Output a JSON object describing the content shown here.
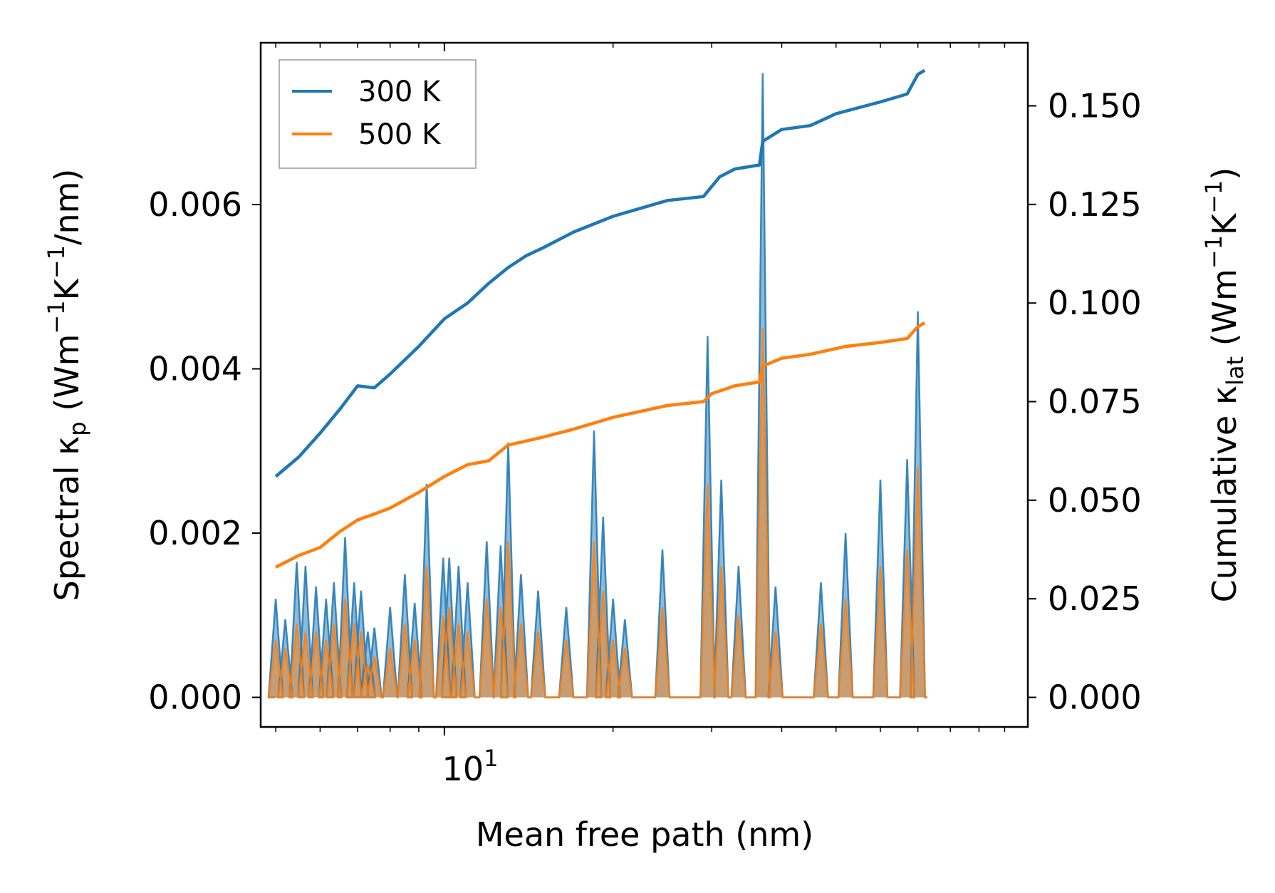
{
  "chart_data": {
    "type": "line",
    "x_scale": "log",
    "xlim": [
      4.7,
      110
    ],
    "xlabel": "Mean free path (nm)",
    "x_major_tick": {
      "value": 10,
      "label_base": "10",
      "label_exp": "1"
    },
    "left_axis": {
      "ylim": [
        -0.00036,
        0.00797
      ],
      "ticks": [
        0.0,
        0.002,
        0.004,
        0.006
      ],
      "tick_labels": [
        "0.000",
        "0.002",
        "0.004",
        "0.006"
      ],
      "label_parts": [
        "Spectral κ",
        "p",
        " (Wm",
        "−1",
        "K",
        "−1",
        "/nm)"
      ]
    },
    "right_axis": {
      "ylim": [
        -0.0075,
        0.166
      ],
      "ticks": [
        0.0,
        0.025,
        0.05,
        0.075,
        0.1,
        0.125,
        0.15
      ],
      "tick_labels": [
        "0.000",
        "0.025",
        "0.050",
        "0.075",
        "0.100",
        "0.125",
        "0.150"
      ],
      "label_parts": [
        "Cumulative κ",
        "lat",
        " (Wm",
        "−1",
        "K",
        "−1",
        ")"
      ]
    },
    "legend": {
      "position": "top-left",
      "entries": [
        {
          "label": "300 K",
          "color": "#1f77b4"
        },
        {
          "label": "500 K",
          "color": "#ff7f0e"
        }
      ]
    },
    "series": [
      {
        "name": "300 K",
        "color": "#1f77b4",
        "spectral_peaks": [
          [
            5.0,
            0.0012
          ],
          [
            5.2,
            0.00095
          ],
          [
            5.45,
            0.00165
          ],
          [
            5.65,
            0.0016
          ],
          [
            5.9,
            0.00135
          ],
          [
            6.15,
            0.0012
          ],
          [
            6.35,
            0.0014
          ],
          [
            6.65,
            0.00195
          ],
          [
            6.9,
            0.0014
          ],
          [
            7.1,
            0.0013
          ],
          [
            7.3,
            0.0008
          ],
          [
            7.5,
            0.00085
          ],
          [
            8.0,
            0.0011
          ],
          [
            8.5,
            0.0015
          ],
          [
            8.85,
            0.00115
          ],
          [
            9.3,
            0.0026
          ],
          [
            9.95,
            0.0017
          ],
          [
            10.2,
            0.0017
          ],
          [
            10.6,
            0.0016
          ],
          [
            11.0,
            0.0014
          ],
          [
            11.9,
            0.0019
          ],
          [
            12.6,
            0.00185
          ],
          [
            13.0,
            0.0031
          ],
          [
            13.7,
            0.0015
          ],
          [
            14.7,
            0.0013
          ],
          [
            16.5,
            0.0011
          ],
          [
            18.5,
            0.00325
          ],
          [
            19.2,
            0.0022
          ],
          [
            20.0,
            0.0012
          ],
          [
            21.0,
            0.00095
          ],
          [
            24.5,
            0.0018
          ],
          [
            29.5,
            0.0044
          ],
          [
            31.2,
            0.00265
          ],
          [
            33.5,
            0.0016
          ],
          [
            37.0,
            0.0076
          ],
          [
            39.0,
            0.00135
          ],
          [
            47.0,
            0.0014
          ],
          [
            52.0,
            0.002
          ],
          [
            60.0,
            0.00265
          ],
          [
            67.0,
            0.0029
          ],
          [
            70.0,
            0.0047
          ]
        ],
        "cumulative": [
          [
            5.0,
            0.056
          ],
          [
            5.5,
            0.061
          ],
          [
            6.0,
            0.067
          ],
          [
            6.5,
            0.073
          ],
          [
            7.0,
            0.079
          ],
          [
            7.5,
            0.0785
          ],
          [
            8.0,
            0.082
          ],
          [
            9.0,
            0.089
          ],
          [
            10.0,
            0.096
          ],
          [
            11.0,
            0.1
          ],
          [
            12.0,
            0.105
          ],
          [
            13.0,
            0.109
          ],
          [
            14.0,
            0.112
          ],
          [
            15.0,
            0.114
          ],
          [
            17.0,
            0.118
          ],
          [
            20.0,
            0.122
          ],
          [
            25.0,
            0.126
          ],
          [
            29.0,
            0.127
          ],
          [
            31.0,
            0.132
          ],
          [
            33.0,
            0.134
          ],
          [
            36.5,
            0.135
          ],
          [
            37.0,
            0.141
          ],
          [
            40.0,
            0.144
          ],
          [
            45.0,
            0.145
          ],
          [
            50.0,
            0.148
          ],
          [
            60.0,
            0.151
          ],
          [
            67.0,
            0.153
          ],
          [
            70.0,
            0.158
          ],
          [
            72.0,
            0.159
          ]
        ]
      },
      {
        "name": "500 K",
        "color": "#ff7f0e",
        "spectral_peaks": [
          [
            5.0,
            0.0007
          ],
          [
            5.2,
            0.0006
          ],
          [
            5.45,
            0.0009
          ],
          [
            5.65,
            0.0008
          ],
          [
            5.9,
            0.0008
          ],
          [
            6.15,
            0.0007
          ],
          [
            6.35,
            0.0009
          ],
          [
            6.65,
            0.0012
          ],
          [
            6.9,
            0.0009
          ],
          [
            7.1,
            0.0008
          ],
          [
            7.3,
            0.0004
          ],
          [
            7.5,
            0.0005
          ],
          [
            8.0,
            0.0006
          ],
          [
            8.5,
            0.0009
          ],
          [
            8.85,
            0.0007
          ],
          [
            9.3,
            0.0016
          ],
          [
            9.95,
            0.001
          ],
          [
            10.2,
            0.0011
          ],
          [
            10.6,
            0.0009
          ],
          [
            11.0,
            0.0008
          ],
          [
            11.9,
            0.0012
          ],
          [
            12.6,
            0.0011
          ],
          [
            13.0,
            0.0019
          ],
          [
            13.7,
            0.0009
          ],
          [
            14.7,
            0.0008
          ],
          [
            16.5,
            0.0007
          ],
          [
            18.5,
            0.0019
          ],
          [
            19.2,
            0.0013
          ],
          [
            20.0,
            0.0007
          ],
          [
            21.0,
            0.0006
          ],
          [
            24.5,
            0.0011
          ],
          [
            29.5,
            0.0026
          ],
          [
            31.2,
            0.0016
          ],
          [
            33.5,
            0.001
          ],
          [
            37.0,
            0.0045
          ],
          [
            39.0,
            0.0008
          ],
          [
            47.0,
            0.0009
          ],
          [
            52.0,
            0.0012
          ],
          [
            60.0,
            0.0016
          ],
          [
            67.0,
            0.0018
          ],
          [
            70.0,
            0.0028
          ]
        ],
        "cumulative": [
          [
            5.0,
            0.033
          ],
          [
            5.5,
            0.036
          ],
          [
            6.0,
            0.038
          ],
          [
            6.5,
            0.042
          ],
          [
            7.0,
            0.045
          ],
          [
            7.5,
            0.0465
          ],
          [
            8.0,
            0.048
          ],
          [
            9.0,
            0.052
          ],
          [
            10.0,
            0.056
          ],
          [
            11.0,
            0.059
          ],
          [
            12.0,
            0.06
          ],
          [
            13.0,
            0.064
          ],
          [
            14.0,
            0.065
          ],
          [
            15.0,
            0.066
          ],
          [
            17.0,
            0.068
          ],
          [
            20.0,
            0.071
          ],
          [
            25.0,
            0.074
          ],
          [
            29.0,
            0.075
          ],
          [
            30.0,
            0.077
          ],
          [
            33.0,
            0.079
          ],
          [
            36.5,
            0.08
          ],
          [
            37.0,
            0.084
          ],
          [
            40.0,
            0.086
          ],
          [
            45.0,
            0.087
          ],
          [
            52.0,
            0.089
          ],
          [
            60.0,
            0.09
          ],
          [
            67.0,
            0.091
          ],
          [
            70.0,
            0.094
          ],
          [
            72.0,
            0.095
          ]
        ]
      }
    ]
  }
}
